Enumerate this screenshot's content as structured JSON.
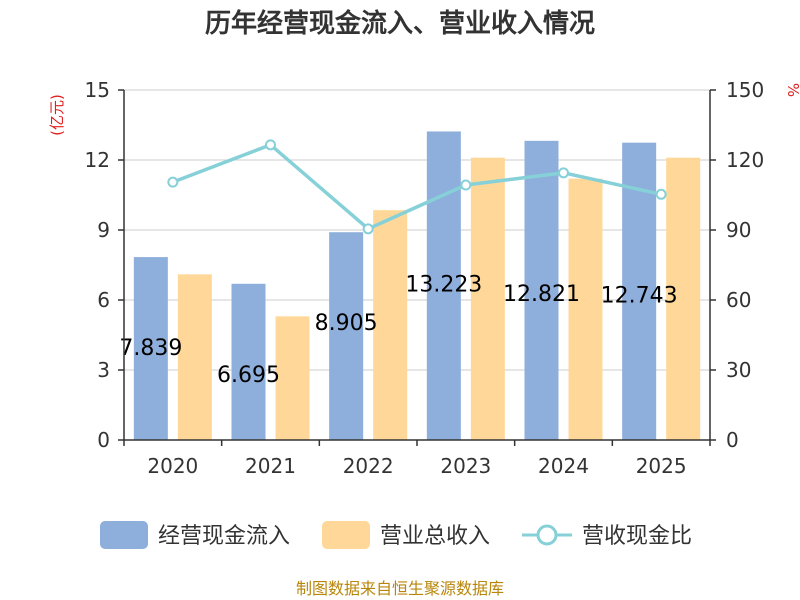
{
  "chart_data": {
    "type": "bar",
    "title": "历年经营现金流入、营业收入情况",
    "categories": [
      "2020",
      "2021",
      "2022",
      "2023",
      "2024",
      "2025"
    ],
    "y_left": {
      "label": "(亿元)",
      "min": 0,
      "max": 15,
      "ticks": [
        0,
        3,
        6,
        9,
        12,
        15
      ]
    },
    "y_right": {
      "label": "%",
      "min": 0,
      "max": 150,
      "ticks": [
        0,
        30,
        60,
        90,
        120,
        150
      ]
    },
    "series": [
      {
        "name": "经营现金流入",
        "type": "bar",
        "axis": "left",
        "color": "#8eaedb",
        "values": [
          7.839,
          6.695,
          8.905,
          13.223,
          12.821,
          12.743
        ],
        "labels": [
          "7.839",
          "6.695",
          "8.905",
          "13.223",
          "12.821",
          "12.743"
        ]
      },
      {
        "name": "营业总收入",
        "type": "bar",
        "axis": "left",
        "color": "#ffd899",
        "values": [
          7.1,
          5.3,
          9.85,
          12.1,
          11.2,
          12.1
        ]
      },
      {
        "name": "营收现金比",
        "type": "line",
        "axis": "right",
        "color": "#86d0d8",
        "values": [
          110.5,
          126.5,
          90.5,
          109.3,
          114.5,
          105.3
        ]
      }
    ],
    "grid": true,
    "legend_position": "bottom"
  },
  "source_text": "制图数据来自恒生聚源数据库"
}
